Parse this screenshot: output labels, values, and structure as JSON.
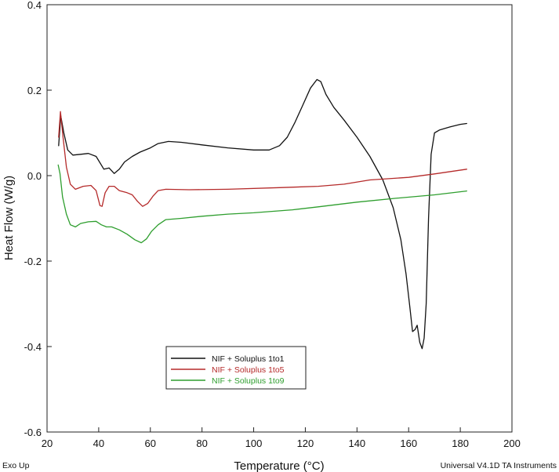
{
  "chart_data": {
    "type": "line",
    "title": "",
    "xlabel": "Temperature (°C)",
    "ylabel": "Heat Flow (W/g)",
    "xlim": [
      20,
      200
    ],
    "ylim": [
      -0.6,
      0.4
    ],
    "x_ticks": [
      "20",
      "40",
      "60",
      "80",
      "100",
      "120",
      "140",
      "160",
      "180",
      "200"
    ],
    "y_ticks": [
      "0.4",
      "0.2",
      "0.0",
      "-0.2",
      "-0.4",
      "-0.6"
    ],
    "grid": false,
    "legend_position": "lower-left",
    "series": [
      {
        "name": "NIF + Soluplus 1to1",
        "color": "#111111",
        "points": [
          [
            24.5,
            0.07
          ],
          [
            25.3,
            0.14
          ],
          [
            26.5,
            0.1
          ],
          [
            28,
            0.06
          ],
          [
            30,
            0.048
          ],
          [
            33,
            0.05
          ],
          [
            36,
            0.052
          ],
          [
            39,
            0.045
          ],
          [
            42,
            0.015
          ],
          [
            44,
            0.018
          ],
          [
            46,
            0.005
          ],
          [
            48,
            0.015
          ],
          [
            50,
            0.032
          ],
          [
            53,
            0.045
          ],
          [
            56,
            0.055
          ],
          [
            60,
            0.065
          ],
          [
            63,
            0.075
          ],
          [
            67,
            0.08
          ],
          [
            72,
            0.078
          ],
          [
            80,
            0.072
          ],
          [
            90,
            0.065
          ],
          [
            100,
            0.06
          ],
          [
            106,
            0.06
          ],
          [
            110,
            0.07
          ],
          [
            113,
            0.09
          ],
          [
            116,
            0.125
          ],
          [
            119,
            0.165
          ],
          [
            122,
            0.205
          ],
          [
            124.5,
            0.225
          ],
          [
            126,
            0.22
          ],
          [
            128,
            0.19
          ],
          [
            131,
            0.16
          ],
          [
            135,
            0.13
          ],
          [
            140,
            0.09
          ],
          [
            145,
            0.045
          ],
          [
            150,
            -0.01
          ],
          [
            154,
            -0.075
          ],
          [
            157,
            -0.15
          ],
          [
            159,
            -0.23
          ],
          [
            160.5,
            -0.31
          ],
          [
            161.5,
            -0.365
          ],
          [
            162.5,
            -0.36
          ],
          [
            163.3,
            -0.35
          ],
          [
            164.3,
            -0.39
          ],
          [
            165.2,
            -0.405
          ],
          [
            166,
            -0.38
          ],
          [
            166.8,
            -0.3
          ],
          [
            167.7,
            -0.1
          ],
          [
            168.7,
            0.05
          ],
          [
            170,
            0.1
          ],
          [
            172,
            0.107
          ],
          [
            176,
            0.114
          ],
          [
            180,
            0.12
          ],
          [
            182.5,
            0.122
          ]
        ]
      },
      {
        "name": "NIF + Soluplus 1to5",
        "color": "#b52a2a",
        "points": [
          [
            24.5,
            0.09
          ],
          [
            25.2,
            0.15
          ],
          [
            26.2,
            0.09
          ],
          [
            27.5,
            0.02
          ],
          [
            29,
            -0.02
          ],
          [
            31,
            -0.032
          ],
          [
            34,
            -0.025
          ],
          [
            37,
            -0.023
          ],
          [
            39,
            -0.035
          ],
          [
            40.5,
            -0.07
          ],
          [
            41.3,
            -0.072
          ],
          [
            42.5,
            -0.04
          ],
          [
            44,
            -0.025
          ],
          [
            46,
            -0.025
          ],
          [
            48,
            -0.035
          ],
          [
            51,
            -0.04
          ],
          [
            53,
            -0.045
          ],
          [
            55,
            -0.06
          ],
          [
            57,
            -0.072
          ],
          [
            59,
            -0.065
          ],
          [
            61,
            -0.048
          ],
          [
            63,
            -0.035
          ],
          [
            66,
            -0.032
          ],
          [
            75,
            -0.033
          ],
          [
            90,
            -0.032
          ],
          [
            110,
            -0.028
          ],
          [
            125,
            -0.025
          ],
          [
            135,
            -0.02
          ],
          [
            145,
            -0.01
          ],
          [
            160,
            -0.004
          ],
          [
            170,
            0.004
          ],
          [
            182.5,
            0.015
          ]
        ]
      },
      {
        "name": "NIF + Soluplus 1to9",
        "color": "#2e9e2e",
        "points": [
          [
            24.3,
            0.025
          ],
          [
            25,
            0.005
          ],
          [
            26,
            -0.05
          ],
          [
            27.5,
            -0.09
          ],
          [
            29,
            -0.115
          ],
          [
            31,
            -0.12
          ],
          [
            33,
            -0.112
          ],
          [
            36,
            -0.108
          ],
          [
            39,
            -0.107
          ],
          [
            41,
            -0.115
          ],
          [
            43,
            -0.12
          ],
          [
            45,
            -0.12
          ],
          [
            48,
            -0.127
          ],
          [
            51,
            -0.137
          ],
          [
            54,
            -0.15
          ],
          [
            56.5,
            -0.157
          ],
          [
            58.5,
            -0.148
          ],
          [
            60.5,
            -0.13
          ],
          [
            63,
            -0.115
          ],
          [
            66,
            -0.103
          ],
          [
            72,
            -0.1
          ],
          [
            80,
            -0.095
          ],
          [
            90,
            -0.09
          ],
          [
            100,
            -0.087
          ],
          [
            115,
            -0.08
          ],
          [
            125,
            -0.073
          ],
          [
            140,
            -0.062
          ],
          [
            155,
            -0.053
          ],
          [
            170,
            -0.045
          ],
          [
            182.5,
            -0.036
          ]
        ]
      }
    ]
  },
  "footer": {
    "left": "Exo Up",
    "right": "Universal V4.1D TA Instruments"
  }
}
